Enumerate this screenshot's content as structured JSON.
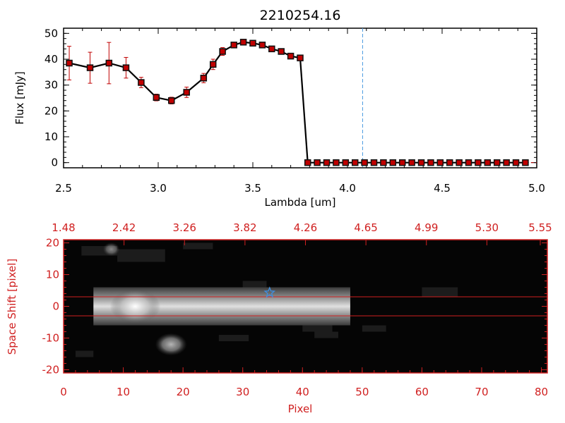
{
  "chart_data": [
    {
      "type": "line",
      "title": "2210254.16",
      "xlabel": "Lambda [um]",
      "ylabel": "Flux [mJy]",
      "xlim": [
        2.5,
        5.0
      ],
      "ylim": [
        -2,
        52
      ],
      "xticks": [
        "2.5",
        "3.0",
        "3.5",
        "4.0",
        "4.5",
        "5.0"
      ],
      "yticks": [
        "0",
        "10",
        "20",
        "30",
        "40",
        "50"
      ],
      "marker_color": "#c00000",
      "line_color": "#000000",
      "reference_line": {
        "x": 4.08,
        "color": "#4a9be0"
      },
      "series": [
        {
          "x": [
            2.53,
            2.64,
            2.74,
            2.83,
            2.91,
            2.99,
            3.07,
            3.15,
            3.24,
            3.29,
            3.34,
            3.4,
            3.45,
            3.5,
            3.55,
            3.6,
            3.65,
            3.7,
            3.75,
            3.79,
            3.84,
            3.89,
            3.94,
            3.99,
            4.04,
            4.09,
            4.14,
            4.19,
            4.24,
            4.29,
            4.34,
            4.39,
            4.44,
            4.49,
            4.54,
            4.59,
            4.64,
            4.69,
            4.74,
            4.79,
            4.84,
            4.89,
            4.94
          ],
          "y": [
            38.5,
            36.7,
            38.5,
            36.7,
            31.0,
            25.2,
            24.0,
            27.2,
            32.7,
            38.0,
            43.0,
            45.5,
            46.6,
            46.2,
            45.5,
            44.0,
            43.0,
            41.2,
            40.5,
            0,
            0,
            0,
            0,
            0,
            0,
            0,
            0,
            0,
            0,
            0,
            0,
            0,
            0,
            0,
            0,
            0,
            0,
            0,
            0,
            0,
            0,
            0,
            0
          ],
          "yerr": [
            6.5,
            6.0,
            8.0,
            4.0,
            2.0,
            1.3,
            1.3,
            2.0,
            1.8,
            2.0,
            1.5,
            1.0,
            0.8,
            0.8,
            0.8,
            0.8,
            0.8,
            0.8,
            0.8,
            0,
            0,
            0,
            0,
            0,
            0,
            0,
            0,
            0,
            0,
            0,
            0,
            0,
            0,
            0,
            0,
            0,
            0,
            0,
            0,
            0,
            0,
            0,
            0
          ]
        }
      ]
    },
    {
      "type": "heatmap",
      "xlabel": "Pixel",
      "ylabel": "Space Shift [pixel]",
      "xlim": [
        0,
        81
      ],
      "ylim": [
        -21,
        21
      ],
      "xticks": [
        "0",
        "10",
        "20",
        "30",
        "40",
        "50",
        "60",
        "70",
        "80"
      ],
      "yticks": [
        "-20",
        "-10",
        "0",
        "10",
        "20"
      ],
      "top_ticks": [
        "1.48",
        "2.42",
        "3.26",
        "3.82",
        "4.26",
        "4.65",
        "4.99",
        "5.30",
        "5.55"
      ],
      "axis_color": "#d02020",
      "aperture_lines": [
        3,
        -3
      ],
      "star_marker": {
        "x": 34.5,
        "y": 4.3,
        "color": "#3f8fe0"
      },
      "trace": {
        "x_start": 5,
        "x_end": 48,
        "center_y": 0
      },
      "blobs": [
        {
          "x": 12,
          "y": 0,
          "level": 1.0
        },
        {
          "x": 18,
          "y": -12,
          "level": 0.55
        },
        {
          "x": 8,
          "y": 18,
          "level": 0.2
        }
      ]
    }
  ]
}
